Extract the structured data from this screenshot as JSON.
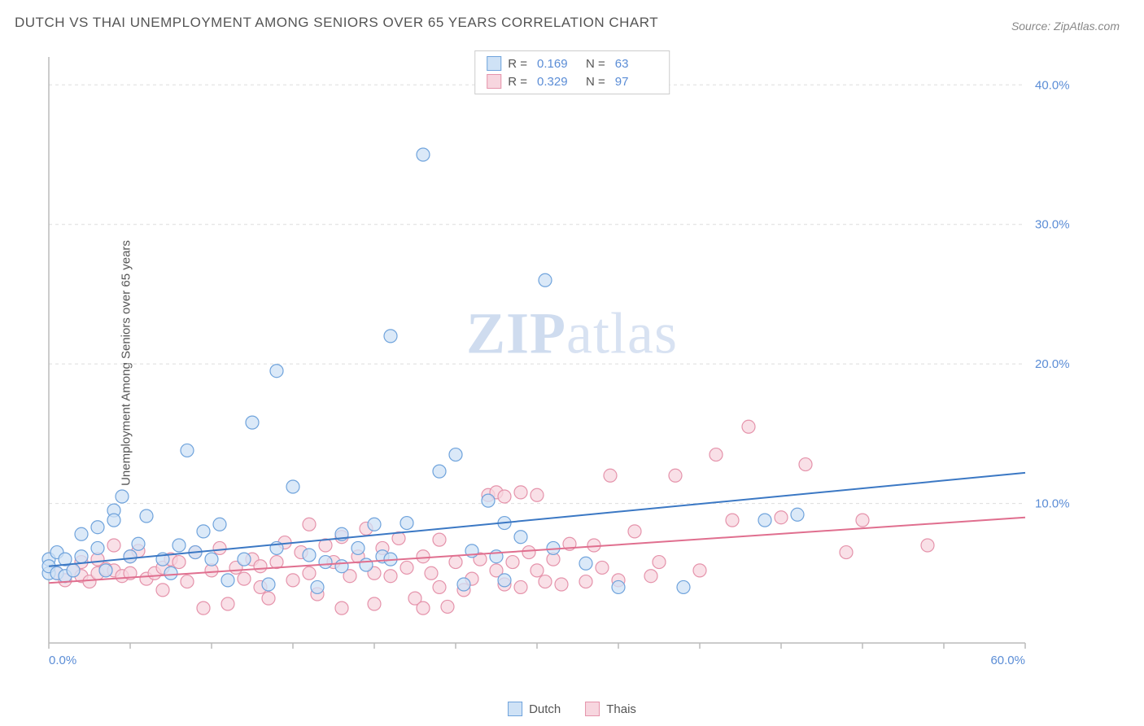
{
  "title": "DUTCH VS THAI UNEMPLOYMENT AMONG SENIORS OVER 65 YEARS CORRELATION CHART",
  "source": "Source: ZipAtlas.com",
  "y_axis_label": "Unemployment Among Seniors over 65 years",
  "watermark": {
    "bold": "ZIP",
    "rest": "atlas"
  },
  "chart": {
    "type": "scatter",
    "background_color": "#ffffff",
    "grid_color": "#dddddd",
    "axis_color": "#bbbbbb",
    "tick_label_color": "#5b8dd6",
    "xlim": [
      0,
      60
    ],
    "ylim": [
      0,
      42
    ],
    "x_ticks_major": [
      0,
      60
    ],
    "x_tick_labels": [
      "0.0%",
      "60.0%"
    ],
    "x_ticks_minor": [
      5,
      10,
      15,
      20,
      25,
      30,
      35,
      40,
      45,
      50,
      55
    ],
    "y_ticks": [
      10,
      20,
      30,
      40
    ],
    "y_tick_labels": [
      "10.0%",
      "20.0%",
      "30.0%",
      "40.0%"
    ],
    "marker_radius": 8,
    "marker_stroke_width": 1.2,
    "trend_line_width": 2,
    "series": [
      {
        "name": "Dutch",
        "fill": "#cfe2f6",
        "stroke": "#6fa3dc",
        "line_color": "#3b78c4",
        "r_value": "0.169",
        "n_value": "63",
        "trend": {
          "x1": 0,
          "y1": 5.5,
          "x2": 60,
          "y2": 12.2
        },
        "points": [
          [
            0,
            5
          ],
          [
            0,
            6
          ],
          [
            0,
            5.5
          ],
          [
            0.5,
            5
          ],
          [
            0.5,
            6.5
          ],
          [
            1,
            6
          ],
          [
            1,
            4.8
          ],
          [
            1.5,
            5.2
          ],
          [
            2,
            6.2
          ],
          [
            2,
            7.8
          ],
          [
            3,
            6.8
          ],
          [
            3,
            8.3
          ],
          [
            3.5,
            5.2
          ],
          [
            4,
            9.5
          ],
          [
            4,
            8.8
          ],
          [
            4.5,
            10.5
          ],
          [
            5,
            6.2
          ],
          [
            5.5,
            7.1
          ],
          [
            6,
            9.1
          ],
          [
            7,
            6.0
          ],
          [
            7.5,
            5.0
          ],
          [
            8,
            7.0
          ],
          [
            8.5,
            13.8
          ],
          [
            9,
            6.5
          ],
          [
            9.5,
            8.0
          ],
          [
            10,
            6.0
          ],
          [
            10.5,
            8.5
          ],
          [
            11,
            4.5
          ],
          [
            12,
            6.0
          ],
          [
            12.5,
            15.8
          ],
          [
            13.5,
            4.2
          ],
          [
            14,
            19.5
          ],
          [
            14,
            6.8
          ],
          [
            15,
            11.2
          ],
          [
            16,
            6.3
          ],
          [
            16.5,
            4.0
          ],
          [
            17,
            5.8
          ],
          [
            18,
            7.8
          ],
          [
            18,
            5.5
          ],
          [
            19,
            6.8
          ],
          [
            19.5,
            5.6
          ],
          [
            20,
            8.5
          ],
          [
            20.5,
            6.2
          ],
          [
            21,
            6.0
          ],
          [
            21,
            22.0
          ],
          [
            22,
            8.6
          ],
          [
            23,
            35.0
          ],
          [
            24,
            12.3
          ],
          [
            25,
            13.5
          ],
          [
            25.5,
            4.2
          ],
          [
            26,
            6.6
          ],
          [
            27,
            10.2
          ],
          [
            27.5,
            6.2
          ],
          [
            28,
            4.5
          ],
          [
            28,
            8.6
          ],
          [
            29,
            7.6
          ],
          [
            30.5,
            26.0
          ],
          [
            31,
            6.8
          ],
          [
            33,
            5.7
          ],
          [
            35,
            4.0
          ],
          [
            39,
            4.0
          ],
          [
            44,
            8.8
          ],
          [
            46,
            9.2
          ]
        ]
      },
      {
        "name": "Thais",
        "fill": "#f7d6df",
        "stroke": "#e593ab",
        "line_color": "#e06f8f",
        "r_value": "0.329",
        "n_value": "97",
        "trend": {
          "x1": 0,
          "y1": 4.3,
          "x2": 60,
          "y2": 9.0
        },
        "points": [
          [
            0.5,
            5
          ],
          [
            1,
            4.5
          ],
          [
            1.5,
            5.2
          ],
          [
            2,
            4.8
          ],
          [
            2,
            5.8
          ],
          [
            2.5,
            4.4
          ],
          [
            3,
            6.0
          ],
          [
            3,
            5.0
          ],
          [
            3.5,
            5.3
          ],
          [
            4,
            7.0
          ],
          [
            4,
            5.2
          ],
          [
            4.5,
            4.8
          ],
          [
            5,
            5.0
          ],
          [
            5,
            6.2
          ],
          [
            5.5,
            6.6
          ],
          [
            6,
            4.6
          ],
          [
            6.5,
            5.0
          ],
          [
            7,
            5.4
          ],
          [
            7,
            3.8
          ],
          [
            7.5,
            6.0
          ],
          [
            8,
            5.8
          ],
          [
            8.5,
            4.4
          ],
          [
            9,
            6.5
          ],
          [
            9.5,
            2.5
          ],
          [
            10,
            5.2
          ],
          [
            10.5,
            6.8
          ],
          [
            11,
            2.8
          ],
          [
            11.5,
            5.4
          ],
          [
            12,
            4.6
          ],
          [
            12.5,
            6.0
          ],
          [
            13,
            4.0
          ],
          [
            13,
            5.5
          ],
          [
            13.5,
            3.2
          ],
          [
            14,
            5.8
          ],
          [
            14.5,
            7.2
          ],
          [
            15,
            4.5
          ],
          [
            15.5,
            6.5
          ],
          [
            16,
            5.0
          ],
          [
            16,
            8.5
          ],
          [
            16.5,
            3.5
          ],
          [
            17,
            7.0
          ],
          [
            17.5,
            5.8
          ],
          [
            18,
            2.5
          ],
          [
            18,
            7.6
          ],
          [
            18.5,
            4.8
          ],
          [
            19,
            6.2
          ],
          [
            19.5,
            8.2
          ],
          [
            20,
            5.0
          ],
          [
            20,
            2.8
          ],
          [
            20.5,
            6.8
          ],
          [
            21,
            4.8
          ],
          [
            21.5,
            7.5
          ],
          [
            22,
            5.4
          ],
          [
            22.5,
            3.2
          ],
          [
            23,
            6.2
          ],
          [
            23,
            2.5
          ],
          [
            23.5,
            5.0
          ],
          [
            24,
            4.0
          ],
          [
            24,
            7.4
          ],
          [
            24.5,
            2.6
          ],
          [
            25,
            5.8
          ],
          [
            25.5,
            3.8
          ],
          [
            26,
            4.6
          ],
          [
            26.5,
            6.0
          ],
          [
            27,
            10.6
          ],
          [
            27.5,
            5.2
          ],
          [
            27.5,
            10.8
          ],
          [
            28,
            10.5
          ],
          [
            28,
            4.2
          ],
          [
            28.5,
            5.8
          ],
          [
            29,
            10.8
          ],
          [
            29,
            4.0
          ],
          [
            29.5,
            6.5
          ],
          [
            30,
            5.2
          ],
          [
            30,
            10.6
          ],
          [
            30.5,
            4.4
          ],
          [
            31,
            6.0
          ],
          [
            31.5,
            4.2
          ],
          [
            32,
            7.1
          ],
          [
            33,
            4.4
          ],
          [
            33.5,
            7.0
          ],
          [
            34,
            5.4
          ],
          [
            34.5,
            12.0
          ],
          [
            35,
            4.5
          ],
          [
            36,
            8.0
          ],
          [
            37,
            4.8
          ],
          [
            37.5,
            5.8
          ],
          [
            38.5,
            12.0
          ],
          [
            40,
            5.2
          ],
          [
            41,
            13.5
          ],
          [
            42,
            8.8
          ],
          [
            43,
            15.5
          ],
          [
            45,
            9.0
          ],
          [
            46.5,
            12.8
          ],
          [
            49,
            6.5
          ],
          [
            50,
            8.8
          ],
          [
            54,
            7.0
          ]
        ]
      }
    ]
  },
  "legend_top_labels": {
    "R": "R  =",
    "N": "N  ="
  },
  "legend_bottom": [
    {
      "label": "Dutch",
      "fill": "#cfe2f6",
      "stroke": "#6fa3dc"
    },
    {
      "label": "Thais",
      "fill": "#f7d6df",
      "stroke": "#e593ab"
    }
  ]
}
